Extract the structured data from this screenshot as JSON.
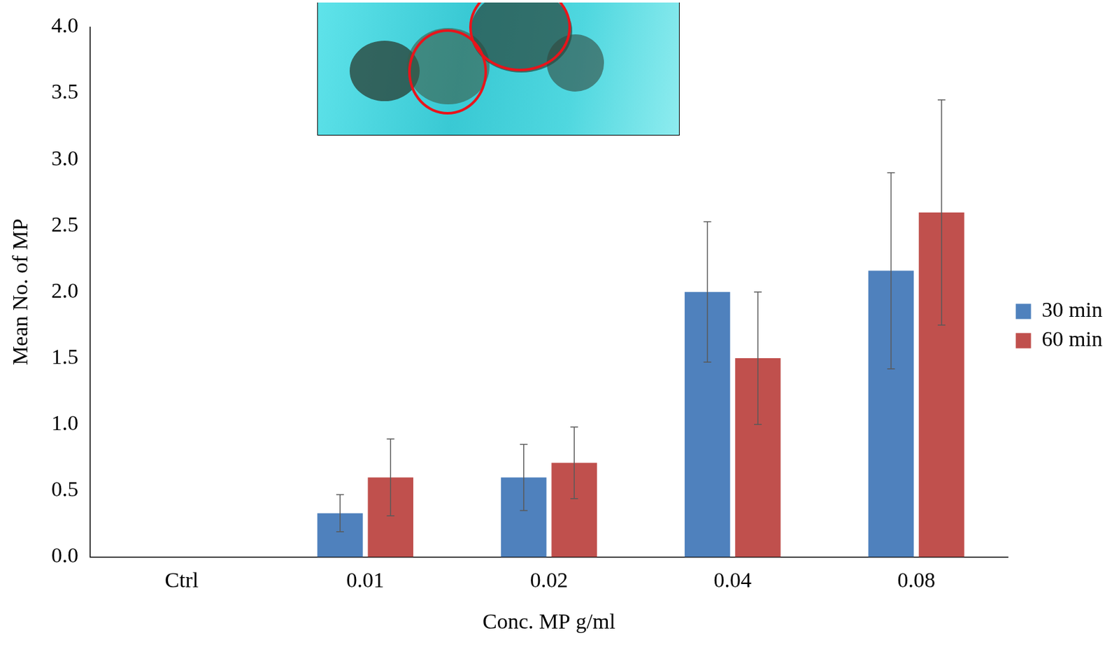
{
  "chart_data": {
    "type": "bar",
    "x_label": "Conc. MP g/ml",
    "y_label": "Mean No. of MP",
    "categories": [
      "Ctrl",
      "0.01",
      "0.02",
      "0.04",
      "0.08"
    ],
    "series": [
      {
        "name": "30 min",
        "color": "#4f81bd",
        "values": [
          0,
          0.33,
          0.6,
          2.0,
          2.16
        ],
        "errors": [
          0,
          0.14,
          0.25,
          0.53,
          0.74
        ]
      },
      {
        "name": "60 min",
        "color": "#c0504d",
        "values": [
          0,
          0.6,
          0.71,
          1.5,
          2.6
        ],
        "errors": [
          0,
          0.29,
          0.27,
          0.5,
          0.85
        ]
      }
    ],
    "ylim": [
      0,
      4
    ],
    "yticks": [
      {
        "value": 0,
        "label": "0.0"
      },
      0.5,
      {
        "value": 1,
        "label": "1.0"
      },
      1.5,
      {
        "value": 2,
        "label": "2.0"
      },
      2.5,
      {
        "value": 3,
        "label": "3.0"
      },
      3.5,
      {
        "value": 4,
        "label": "4.0"
      }
    ],
    "grid": false,
    "legend": "right"
  }
}
